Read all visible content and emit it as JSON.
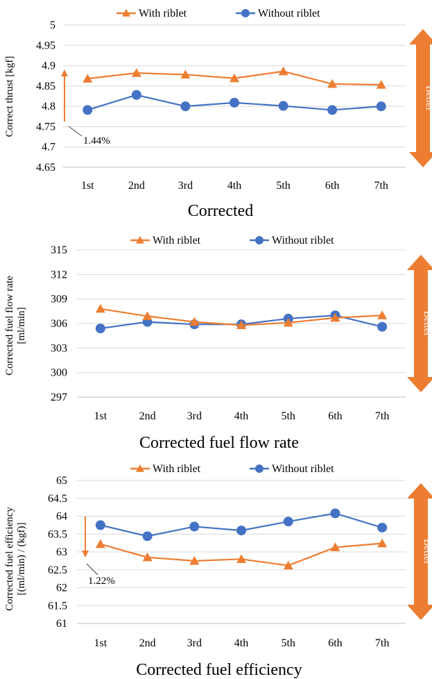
{
  "colors": {
    "with_riblet": "#ED7D31",
    "without_riblet": "#4472C4",
    "grid": "#D9D9D9",
    "axis": "#BFBFBF",
    "arrow": "#ED7D31"
  },
  "chart_data": [
    {
      "type": "line",
      "title": "Corrected",
      "ylabel": "Correct thrust [kgf]",
      "categories": [
        "1st",
        "2nd",
        "3rd",
        "4th",
        "5th",
        "6th",
        "7th"
      ],
      "ylim": [
        4.65,
        5
      ],
      "yticks": [
        "5",
        "4.95",
        "4.9",
        "4.85",
        "4.8",
        "4.75",
        "4.7",
        "4.65"
      ],
      "series": [
        {
          "name": "With riblet",
          "marker": "triangle",
          "values": [
            4.868,
            4.882,
            4.878,
            4.869,
            4.886,
            4.855,
            4.853
          ]
        },
        {
          "name": "Without riblet",
          "marker": "circle",
          "values": [
            4.791,
            4.828,
            4.8,
            4.809,
            4.801,
            4.791,
            4.8
          ]
        }
      ],
      "side_label": "Better",
      "annotation": {
        "text": "1.44%"
      }
    },
    {
      "type": "line",
      "title": "Corrected fuel flow rate",
      "ylabel": "Corrected fuel flow rate [ml/min]",
      "ylabel_lines": [
        "Corrected fuel flow rate",
        "[ml/min]"
      ],
      "categories": [
        "1st",
        "2nd",
        "3rd",
        "4th",
        "5th",
        "6th",
        "7th"
      ],
      "ylim": [
        297,
        315
      ],
      "yticks": [
        "315",
        "312",
        "309",
        "306",
        "303",
        "300",
        "297"
      ],
      "series": [
        {
          "name": "With riblet",
          "marker": "triangle",
          "values": [
            307.8,
            306.9,
            306.2,
            305.8,
            306.1,
            306.7,
            307.0
          ]
        },
        {
          "name": "Without riblet",
          "marker": "circle",
          "values": [
            305.4,
            306.2,
            305.9,
            305.9,
            306.6,
            307.0,
            305.6
          ]
        }
      ],
      "side_label": "Better"
    },
    {
      "type": "line",
      "title": "Corrected fuel efficiency",
      "ylabel": "Corrected fuel efficiency [ml/min] / [kgf]",
      "ylabel_lines": [
        "Corrected fuel efficiency",
        "[(ml/min) / (kgf)]"
      ],
      "categories": [
        "1st",
        "2nd",
        "3rd",
        "4th",
        "5th",
        "6th",
        "7th"
      ],
      "ylim": [
        61,
        65
      ],
      "yticks": [
        "65",
        "64.5",
        "64",
        "63.5",
        "63",
        "62.5",
        "62",
        "61.5",
        "61"
      ],
      "series": [
        {
          "name": "With riblet",
          "marker": "triangle",
          "values": [
            63.22,
            62.85,
            62.75,
            62.8,
            62.62,
            63.13,
            63.24
          ]
        },
        {
          "name": "Without riblet",
          "marker": "circle",
          "values": [
            63.75,
            63.44,
            63.71,
            63.6,
            63.85,
            64.08,
            63.68
          ]
        }
      ],
      "side_label": "Better",
      "annotation": {
        "text": "1.22%"
      }
    }
  ]
}
